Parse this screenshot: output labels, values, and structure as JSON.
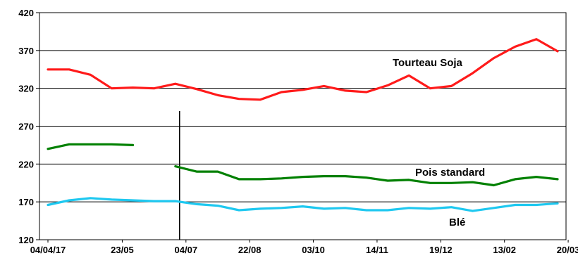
{
  "chart_data": {
    "type": "line",
    "title": "",
    "xlabel": "",
    "ylabel": "",
    "ylim": [
      120,
      420
    ],
    "yticks": [
      120,
      170,
      220,
      270,
      320,
      370,
      420
    ],
    "x_tick_labels": [
      "04/04/17",
      "23/05",
      "04/07",
      "22/08",
      "03/10",
      "14/11",
      "19/12",
      "13/02",
      "20/03"
    ],
    "x_tick_index": [
      0,
      3.5,
      6.5,
      9.5,
      12.5,
      15.5,
      18.5,
      21.5,
      24.5
    ],
    "grid": true,
    "legend": "none",
    "vertical_marker_index": 6.2,
    "series": [
      {
        "name": "Tourteau Soja",
        "color": "#ff1a1a",
        "values": [
          345,
          345,
          338,
          320,
          321,
          320,
          326,
          319,
          311,
          306,
          305,
          315,
          318,
          323,
          317,
          315,
          324,
          337,
          320,
          323,
          340,
          360,
          375,
          385,
          369
        ]
      },
      {
        "name": "Pois standard",
        "color": "#008000",
        "values": [
          240,
          246,
          246,
          246,
          245,
          null,
          null,
          null,
          null,
          null,
          null,
          null,
          null,
          null,
          null,
          null,
          null,
          null,
          null,
          null,
          null,
          null,
          null,
          null,
          null
        ],
        "values_part2": [
          null,
          null,
          null,
          null,
          null,
          null,
          217,
          210,
          210,
          200,
          200,
          201,
          203,
          204,
          204,
          202,
          198,
          199,
          195,
          195,
          196,
          192,
          200,
          203,
          200
        ]
      },
      {
        "name": "Blé",
        "color": "#1ec8f0",
        "values": [
          166,
          172,
          175,
          173,
          172,
          171,
          171,
          167,
          165,
          159,
          161,
          162,
          164,
          161,
          162,
          159,
          159,
          162,
          161,
          163,
          158,
          162,
          166,
          166,
          168
        ]
      }
    ]
  }
}
